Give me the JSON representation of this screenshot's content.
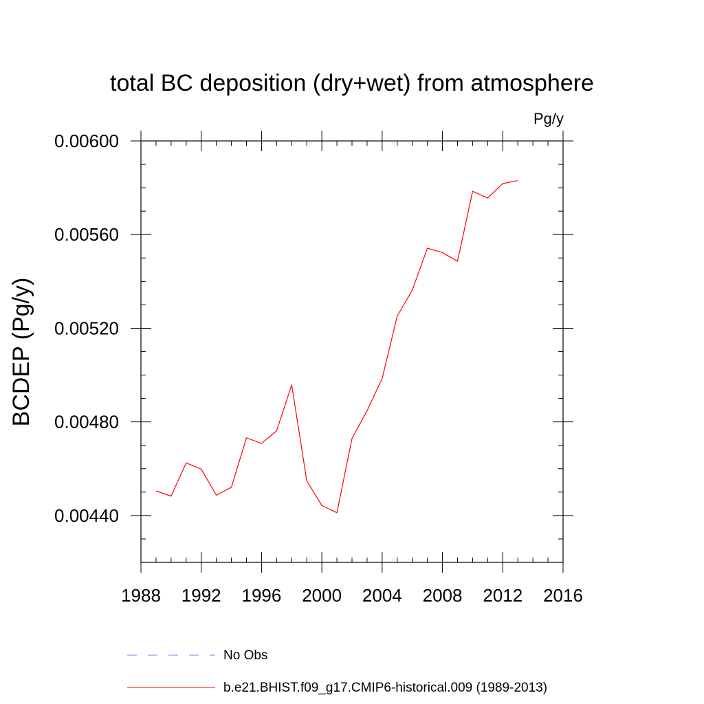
{
  "chart_data": {
    "type": "line",
    "title": "total BC deposition (dry+wet) from atmosphere",
    "units": "Pg/y",
    "ylabel": "BCDEP  (Pg/y)",
    "xlabel": "",
    "xlim": [
      1988,
      2016
    ],
    "ylim": [
      0.0042,
      0.006
    ],
    "x_ticks": [
      1988,
      1992,
      1996,
      2000,
      2004,
      2008,
      2012,
      2016
    ],
    "x_tick_labels": [
      "1988",
      "1992",
      "1996",
      "2000",
      "2004",
      "2008",
      "2012",
      "2016"
    ],
    "y_ticks": [
      0.0044,
      0.0048,
      0.0052,
      0.0056,
      0.006
    ],
    "y_tick_labels": [
      "0.00440",
      "0.00480",
      "0.00520",
      "0.00560",
      "0.00600"
    ],
    "grid": false,
    "series": [
      {
        "name": "b.e21.BHIST.f09_g17.CMIP6-historical.009 (1989-2013)",
        "color": "#ff0000",
        "style": "solid",
        "x": [
          1989,
          1990,
          1991,
          1992,
          1993,
          1994,
          1995,
          1996,
          1997,
          1998,
          1999,
          2000,
          2001,
          2002,
          2003,
          2004,
          2005,
          2006,
          2007,
          2008,
          2009,
          2010,
          2011,
          2012,
          2013
        ],
        "values": [
          0.004505,
          0.004483,
          0.004625,
          0.004598,
          0.004487,
          0.004521,
          0.004732,
          0.004708,
          0.004762,
          0.004958,
          0.004548,
          0.004443,
          0.004412,
          0.004729,
          0.004848,
          0.004985,
          0.005252,
          0.005363,
          0.005542,
          0.005523,
          0.005486,
          0.005785,
          0.005756,
          0.005818,
          0.005831
        ]
      }
    ],
    "legend": [
      {
        "label": "No Obs",
        "color": "#7a7aff",
        "style": "dashed"
      },
      {
        "label": "b.e21.BHIST.f09_g17.CMIP6-historical.009 (1989-2013)",
        "color": "#ff0000",
        "style": "solid"
      }
    ]
  }
}
